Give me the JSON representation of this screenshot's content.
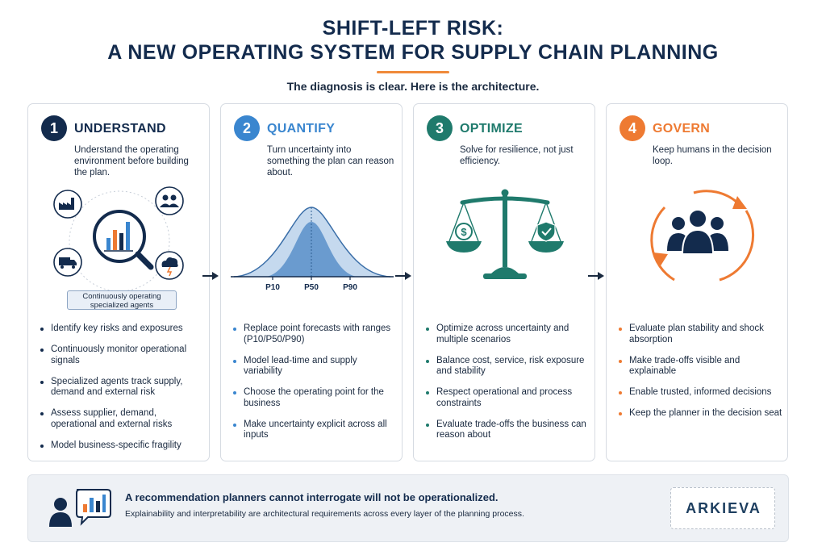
{
  "header": {
    "title_line1": "SHIFT-LEFT RISK:",
    "title_line2": "A NEW OPERATING SYSTEM FOR SUPPLY CHAIN PLANNING",
    "subtitle": "The diagnosis is clear. Here is the architecture."
  },
  "colors": {
    "understand": "#132b4d",
    "quantify": "#3a86cf",
    "optimize": "#1f7a6c",
    "govern": "#ee7a32"
  },
  "cards": [
    {
      "number": "1",
      "title": "UNDERSTAND",
      "description": "Understand the operating environment before building the plan.",
      "visual_label": "Continuously operating specialized agents",
      "icons": [
        "factory-icon",
        "people-icon",
        "bar-chart-magnifier-icon",
        "truck-icon",
        "storm-cloud-icon"
      ],
      "bullets": [
        "Identify key risks and exposures",
        "Continuously monitor operational signals",
        "Specialized agents track supply, demand and external risk",
        "Assess supplier, demand, operational and external risks",
        "Model business-specific fragility"
      ]
    },
    {
      "number": "2",
      "title": "QUANTIFY",
      "description": "Turn uncertainty into something the plan can reason about.",
      "axis_labels": [
        "P10",
        "P50",
        "P90"
      ],
      "icons": [
        "distribution-curve-icon"
      ],
      "bullets": [
        "Replace point forecasts with ranges (P10/P50/P90)",
        "Model lead-time and supply variability",
        "Choose the operating point for the business",
        "Make uncertainty explicit across all inputs"
      ]
    },
    {
      "number": "3",
      "title": "OPTIMIZE",
      "description": "Solve for resilience, not just efficiency.",
      "icons": [
        "balance-scale-icon",
        "dollar-icon",
        "shield-check-icon"
      ],
      "bullets": [
        "Optimize across uncertainty and multiple scenarios",
        "Balance cost, service, risk exposure and stability",
        "Respect operational and process constraints",
        "Evaluate trade-offs the business can reason about"
      ]
    },
    {
      "number": "4",
      "title": "GOVERN",
      "description": "Keep humans in the decision loop.",
      "icons": [
        "people-cycle-icon"
      ],
      "bullets": [
        "Evaluate plan stability and shock absorption",
        "Make trade-offs visible and explainable",
        "Enable trusted, informed decisions",
        "Keep the planner in the decision seat"
      ]
    }
  ],
  "footer": {
    "headline": "A recommendation planners cannot interrogate will not be operationalized.",
    "subline": "Explainability and interpretability are architectural requirements across every layer of the planning process.",
    "icon": "person-chart-bubble-icon",
    "logo": "ARKIEVA"
  }
}
